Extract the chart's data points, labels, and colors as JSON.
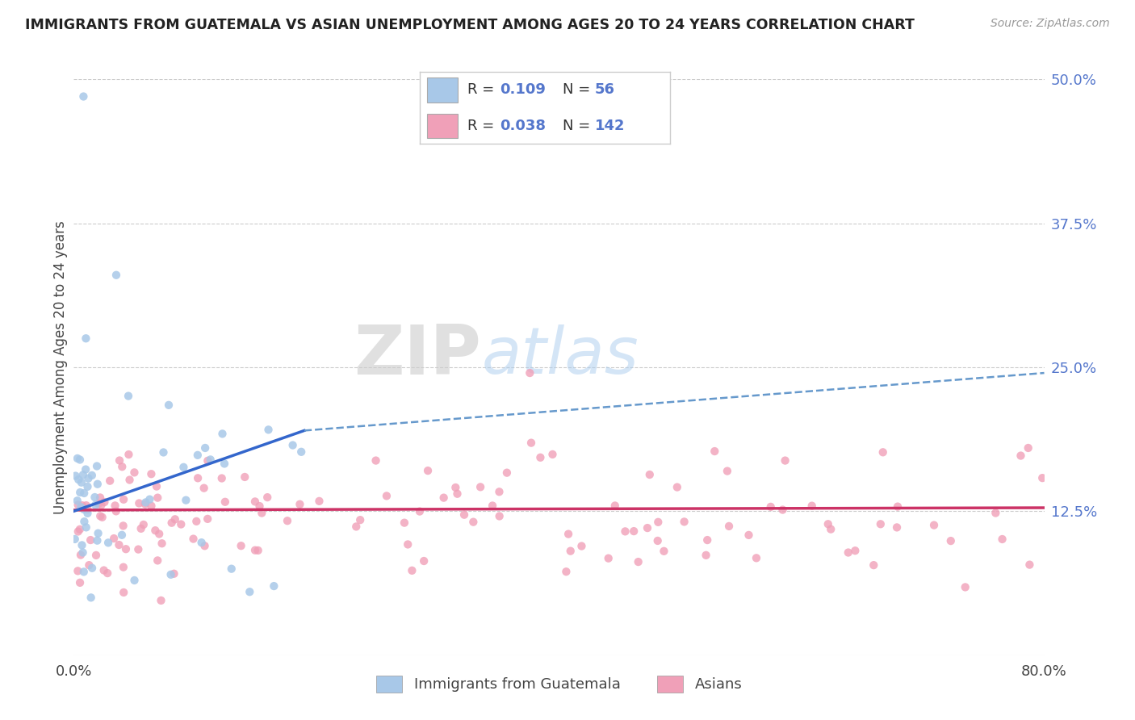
{
  "title": "IMMIGRANTS FROM GUATEMALA VS ASIAN UNEMPLOYMENT AMONG AGES 20 TO 24 YEARS CORRELATION CHART",
  "source": "Source: ZipAtlas.com",
  "ylabel": "Unemployment Among Ages 20 to 24 years",
  "right_yticklabels": [
    "",
    "12.5%",
    "25.0%",
    "37.5%",
    "50.0%"
  ],
  "right_ytick_vals": [
    0.0,
    0.125,
    0.25,
    0.375,
    0.5
  ],
  "watermark_zip": "ZIP",
  "watermark_atlas": "atlas",
  "legend_r1_val": "0.109",
  "legend_n1_val": "56",
  "legend_r2_val": "0.038",
  "legend_n2_val": "142",
  "series1_label": "Immigrants from Guatemala",
  "series2_label": "Asians",
  "series1_color": "#a8c8e8",
  "series2_color": "#f0a0b8",
  "trend1_solid_color": "#3366cc",
  "trend1_dash_color": "#6699cc",
  "trend2_color": "#cc3366",
  "background_color": "#ffffff",
  "grid_color": "#cccccc",
  "title_color": "#222222",
  "axis_label_color": "#5577cc",
  "legend_text_color": "#333333",
  "source_color": "#999999",
  "ylabel_color": "#444444",
  "xlim": [
    0.0,
    0.8
  ],
  "ylim": [
    0.0,
    0.5
  ],
  "trend1_y_start": 0.125,
  "trend1_y_end_solid": 0.195,
  "trend1_x_end_solid": 0.19,
  "trend1_y_end_dash": 0.245,
  "trend1_x_end_dash": 0.8,
  "trend2_y_start": 0.126,
  "trend2_y_end": 0.128
}
